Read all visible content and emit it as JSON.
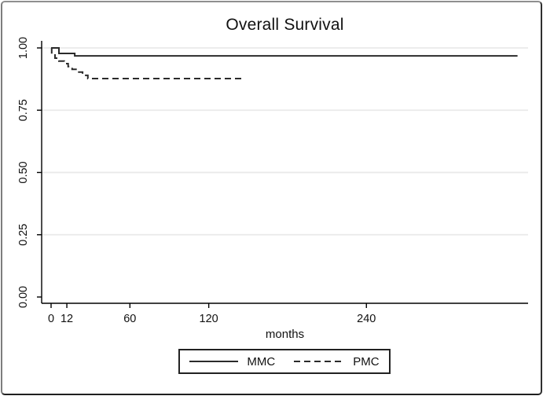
{
  "window": {
    "background": "#ffffff",
    "frame_color": "#2e2e2e"
  },
  "chart_data": {
    "type": "line",
    "subtype": "kaplan-meier-step",
    "title": "Overall Survival",
    "xlabel": "months",
    "ylabel": "",
    "xlim": [
      0,
      360
    ],
    "ylim": [
      0.0,
      1.0
    ],
    "xticks": [
      0,
      12,
      60,
      120,
      240
    ],
    "xtick_labels": [
      "0",
      "12",
      "60",
      "120",
      "240"
    ],
    "yticks": [
      0.0,
      0.25,
      0.5,
      0.75,
      1.0
    ],
    "ytick_labels": [
      "0.00",
      "0.25",
      "0.50",
      "0.75",
      "1.00"
    ],
    "grid": true,
    "gridline_color": "#e9e9e9",
    "axis_color": "#000000",
    "line_color": "#2b2b2b",
    "legend_position": "bottom-center",
    "series": [
      {
        "name": "MMC",
        "line_style": "solid",
        "plateau": 0.968,
        "points": [
          [
            0,
            1.0
          ],
          [
            6,
            1.0
          ],
          [
            6,
            0.978
          ],
          [
            18,
            0.978
          ],
          [
            18,
            0.968
          ],
          [
            355,
            0.968
          ]
        ]
      },
      {
        "name": "PMC",
        "line_style": "dashed",
        "plateau": 0.877,
        "points": [
          [
            0,
            1.0
          ],
          [
            0.5,
            1.0
          ],
          [
            0.5,
            0.976
          ],
          [
            3,
            0.976
          ],
          [
            3,
            0.959
          ],
          [
            6,
            0.959
          ],
          [
            6,
            0.947
          ],
          [
            10,
            0.947
          ],
          [
            10,
            0.937
          ],
          [
            13,
            0.937
          ],
          [
            13,
            0.925
          ],
          [
            16,
            0.925
          ],
          [
            16,
            0.914
          ],
          [
            20,
            0.914
          ],
          [
            20,
            0.903
          ],
          [
            24,
            0.903
          ],
          [
            24,
            0.89
          ],
          [
            28,
            0.89
          ],
          [
            28,
            0.877
          ],
          [
            146,
            0.877
          ]
        ]
      }
    ]
  }
}
